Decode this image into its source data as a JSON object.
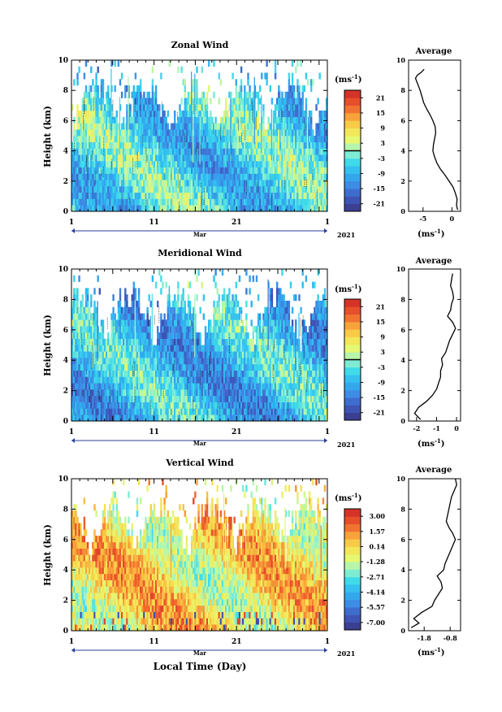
{
  "figure": {
    "xlabel": "Local Time (Day)",
    "unit_label": "(ms",
    "unit_sup": "-1",
    "average_title": "Average",
    "year": "2021",
    "month": "Mar",
    "ylabel": "Height (km)"
  },
  "chart_data": [
    {
      "type": "heatmap",
      "title": "Zonal Wind",
      "xlabel": "Mar",
      "ylabel": "Height (km)",
      "x_ticks": [
        "1",
        "11",
        "21",
        "1"
      ],
      "y_ticks": [
        "0",
        "2",
        "4",
        "6",
        "8",
        "10"
      ],
      "ylim": [
        0,
        10
      ],
      "colorbar_ticks": [
        "21",
        "15",
        "9",
        "3",
        "-3",
        "-9",
        "-15",
        "-21"
      ],
      "colorbar_range": [
        -24,
        24
      ],
      "year": "2021",
      "average_profile": {
        "title": "Average",
        "xlabel": "(ms-1)",
        "x_ticks": [
          "-5",
          "0"
        ],
        "xlim": [
          -7.5,
          1.5
        ],
        "y_ticks": [
          "0",
          "2",
          "4",
          "6",
          "8",
          "10"
        ],
        "heights": [
          0.1,
          0.4,
          0.8,
          1.2,
          1.6,
          2.0,
          2.4,
          2.8,
          3.2,
          3.6,
          4.0,
          4.4,
          4.8,
          5.2,
          5.6,
          6.0,
          6.4,
          6.8,
          7.2,
          7.6,
          8.0,
          8.4,
          8.8,
          9.0,
          9.2,
          9.4
        ],
        "values": [
          1.0,
          0.8,
          0.9,
          0.6,
          0.2,
          -0.5,
          -1.2,
          -2.0,
          -2.6,
          -3.0,
          -3.3,
          -3.2,
          -3.0,
          -2.8,
          -2.9,
          -3.3,
          -3.8,
          -4.4,
          -4.9,
          -5.2,
          -5.5,
          -5.9,
          -6.3,
          -6.0,
          -5.3,
          -4.8
        ]
      }
    },
    {
      "type": "heatmap",
      "title": "Meridional Wind",
      "xlabel": "Mar",
      "ylabel": "Height (km)",
      "x_ticks": [
        "1",
        "11",
        "21",
        "1"
      ],
      "y_ticks": [
        "0",
        "2",
        "4",
        "6",
        "8",
        "10"
      ],
      "ylim": [
        0,
        10
      ],
      "colorbar_ticks": [
        "21",
        "15",
        "9",
        "3",
        "-3",
        "-9",
        "-15",
        "-21"
      ],
      "colorbar_range": [
        -24,
        24
      ],
      "year": "2021",
      "average_profile": {
        "title": "Average",
        "xlabel": "(ms-1)",
        "x_ticks": [
          "-2",
          "-1",
          "0"
        ],
        "xlim": [
          -2.4,
          0.2
        ],
        "y_ticks": [
          "0",
          "2",
          "4",
          "6",
          "8",
          "10"
        ],
        "heights": [
          0.1,
          0.5,
          0.9,
          1.3,
          1.7,
          2.1,
          2.5,
          2.9,
          3.3,
          3.7,
          4.1,
          4.5,
          4.9,
          5.3,
          5.7,
          6.1,
          6.5,
          6.9,
          7.3,
          7.7,
          8.1,
          8.5,
          8.9,
          9.3,
          9.7
        ],
        "values": [
          -1.8,
          -2.1,
          -1.9,
          -1.5,
          -1.2,
          -1.0,
          -0.9,
          -0.8,
          -0.8,
          -0.7,
          -0.75,
          -0.55,
          -0.45,
          -0.35,
          -0.2,
          -0.05,
          -0.2,
          -0.45,
          -0.3,
          -0.25,
          -0.15,
          -0.2,
          -0.3,
          -0.25,
          -0.2
        ]
      }
    },
    {
      "type": "heatmap",
      "title": "Vertical Wind",
      "xlabel": "Mar",
      "ylabel": "Height (km)",
      "x_ticks": [
        "1",
        "11",
        "21",
        "1"
      ],
      "y_ticks": [
        "0",
        "2",
        "4",
        "6",
        "8",
        "10"
      ],
      "ylim": [
        0,
        10
      ],
      "colorbar_ticks": [
        "3.00",
        "1.57",
        "0.14",
        "-1.28",
        "-2.71",
        "-4.14",
        "-5.57",
        "-7.00"
      ],
      "colorbar_range": [
        -7.7,
        3.7
      ],
      "year": "2021",
      "average_profile": {
        "title": "Average",
        "xlabel": "(ms-1)",
        "x_ticks": [
          "-1.8",
          "-0.8"
        ],
        "xlim": [
          -2.4,
          -0.4
        ],
        "y_ticks": [
          "0",
          "2",
          "4",
          "6",
          "8",
          "10"
        ],
        "heights": [
          0.2,
          0.5,
          0.8,
          1.2,
          1.6,
          2.0,
          2.4,
          2.8,
          3.2,
          3.6,
          4.0,
          4.4,
          4.8,
          5.2,
          5.6,
          6.0,
          6.4,
          6.8,
          7.2,
          7.6,
          8.0,
          8.4,
          8.8,
          9.2,
          9.6,
          10.0
        ],
        "values": [
          -2.3,
          -2.0,
          -2.2,
          -1.9,
          -1.5,
          -1.4,
          -1.25,
          -1.1,
          -1.15,
          -1.3,
          -1.05,
          -1.0,
          -0.9,
          -0.8,
          -0.7,
          -0.6,
          -0.7,
          -0.85,
          -0.95,
          -0.9,
          -0.85,
          -0.8,
          -0.75,
          -0.65,
          -0.55,
          -0.6
        ]
      }
    }
  ]
}
